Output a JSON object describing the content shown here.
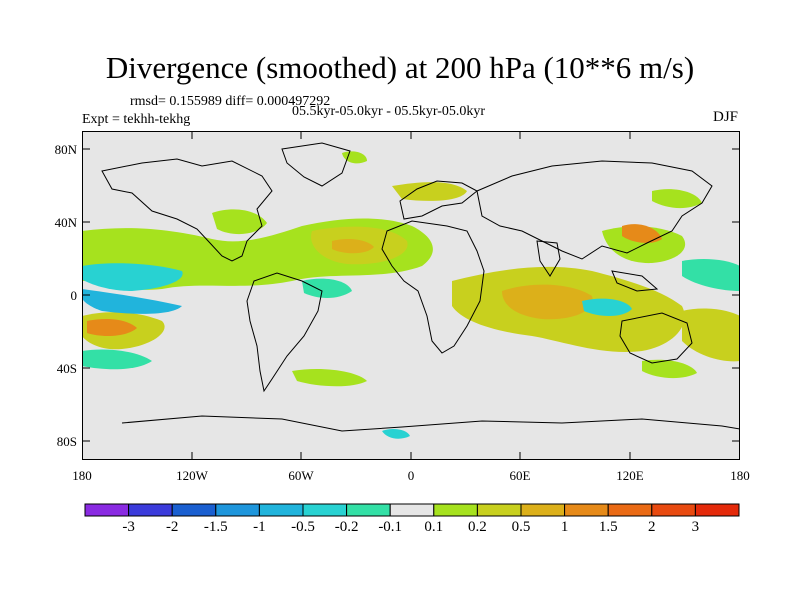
{
  "plot": {
    "title": "Divergence (smoothed) at 200 hPa (10**6 m/s)",
    "stats": "rmsd= 0.155989 diff= 0.000497292",
    "experiment": "Expt = tekhh-tekhg",
    "time_range": "05.5kyr-05.0kyr - 05.5kyr-05.0kyr",
    "season": "DJF",
    "y_ticks": [
      "80N",
      "40N",
      "0",
      "40S",
      "80S"
    ],
    "x_ticks": [
      "180",
      "120W",
      "60W",
      "0",
      "60E",
      "120E",
      "180"
    ],
    "background_color": "#e6e6e6"
  },
  "colorbar": {
    "labels": [
      "-3",
      "-2",
      "-1.5",
      "-1",
      "-0.5",
      "-0.2",
      "-0.1",
      "0.1",
      "0.2",
      "0.5",
      "1",
      "1.5",
      "2",
      "3"
    ],
    "colors": [
      "#8a2be2",
      "#3b3bdb",
      "#1a5fd0",
      "#1e96dc",
      "#21b4dc",
      "#28d2d2",
      "#33e0a6",
      "#e6e6e6",
      "#a6e21e",
      "#c8d01e",
      "#dcb01a",
      "#e68a19",
      "#ea6a14",
      "#e84a10",
      "#e42a0a"
    ]
  }
}
